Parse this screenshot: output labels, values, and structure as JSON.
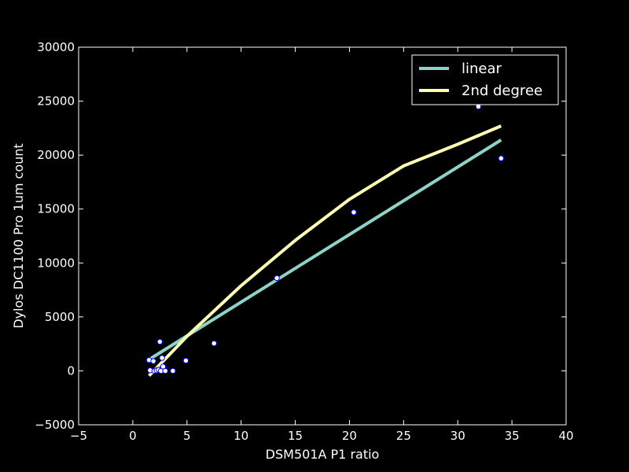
{
  "chart_data": {
    "type": "scatter",
    "xlabel": "DSM501A P1 ratio",
    "ylabel": "Dylos DC1100 Pro 1um count",
    "xlim": [
      -5,
      40
    ],
    "ylim": [
      -5000,
      30000
    ],
    "x_ticks": [
      -5,
      0,
      5,
      10,
      15,
      20,
      25,
      30,
      35,
      40
    ],
    "x_tick_labels": [
      "−5",
      "0",
      "5",
      "10",
      "15",
      "20",
      "25",
      "30",
      "35",
      "40"
    ],
    "y_ticks": [
      -5000,
      0,
      5000,
      10000,
      15000,
      20000,
      25000,
      30000
    ],
    "y_tick_labels": [
      "−5000",
      "0",
      "5000",
      "10000",
      "15000",
      "20000",
      "25000",
      "30000"
    ],
    "grid": false,
    "legend_position": "top-right",
    "colors": {
      "background": "#000000",
      "foreground": "#ffffff",
      "points_fill": "#ffffff",
      "points_edge": "#0000ff",
      "linear": "#8dd3c7",
      "quadratic": "#ffffb3"
    },
    "points": [
      {
        "x": 1.5,
        "y": 1000
      },
      {
        "x": 1.6,
        "y": 50
      },
      {
        "x": 1.9,
        "y": 900
      },
      {
        "x": 2.0,
        "y": 0
      },
      {
        "x": 2.2,
        "y": 50
      },
      {
        "x": 2.4,
        "y": 100
      },
      {
        "x": 2.5,
        "y": 2700
      },
      {
        "x": 2.6,
        "y": 0
      },
      {
        "x": 2.7,
        "y": 1200
      },
      {
        "x": 2.8,
        "y": 400
      },
      {
        "x": 3.0,
        "y": 0
      },
      {
        "x": 3.7,
        "y": 0
      },
      {
        "x": 4.9,
        "y": 950
      },
      {
        "x": 7.5,
        "y": 2550
      },
      {
        "x": 13.3,
        "y": 8600
      },
      {
        "x": 20.4,
        "y": 14700
      },
      {
        "x": 31.9,
        "y": 24500
      },
      {
        "x": 34.0,
        "y": 19700
      }
    ],
    "fits": [
      {
        "name": "linear",
        "x": [
          1.5,
          34.0
        ],
        "y": [
          1050,
          21400
        ]
      },
      {
        "name": "2nd degree",
        "x": [
          1.5,
          5,
          10,
          15,
          20,
          25,
          30,
          34.0
        ],
        "y": [
          -450,
          3200,
          7900,
          12100,
          15900,
          19000,
          21000,
          22700
        ]
      }
    ]
  }
}
